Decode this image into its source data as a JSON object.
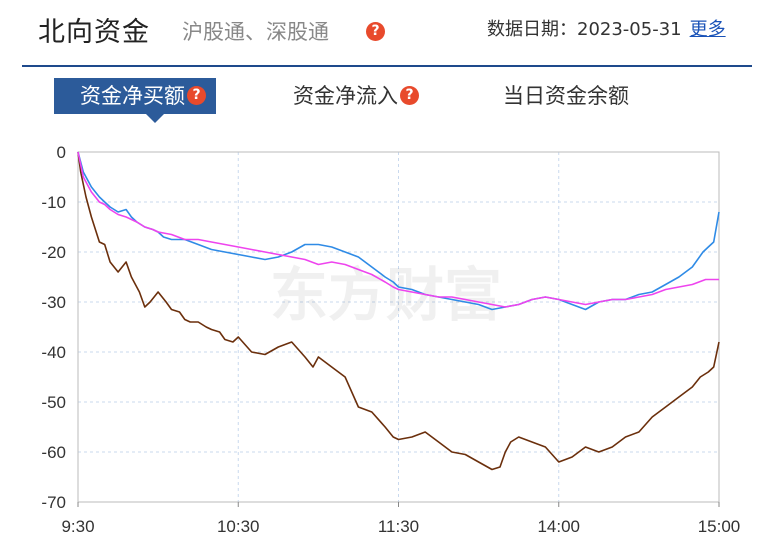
{
  "header": {
    "title": "北向资金",
    "subtitle": "沪股通、深股通",
    "help_icon": "question-mark-icon",
    "date_label": "数据日期：2023-05-31",
    "more_link": "更多"
  },
  "tabs": [
    {
      "label": "资金净买额",
      "active": true,
      "help": true
    },
    {
      "label": "资金净流入",
      "active": false,
      "help": true
    },
    {
      "label": "当日资金余额",
      "active": false,
      "help": false
    }
  ],
  "watermark": "东方财富",
  "colors": {
    "brand": "#1e4a8c",
    "accent": "#e84a2c",
    "blue_series": "#2f8be6",
    "magenta_series": "#ee44ee",
    "brown_series": "#6b2f0c"
  },
  "chart_data": {
    "type": "line",
    "title": "",
    "xlabel": "",
    "ylabel": "",
    "x_ticks": [
      "9:30",
      "10:30",
      "11:30",
      "14:00",
      "15:00"
    ],
    "y_ticks": [
      0,
      -10,
      -20,
      -30,
      -40,
      -50,
      -60,
      -70
    ],
    "ylim": [
      -70,
      0
    ],
    "x_range_minutes": [
      0,
      240
    ],
    "grid": true,
    "series": [
      {
        "color": "#6b2f0c",
        "x": [
          0,
          1,
          3,
          5,
          8,
          10,
          12,
          15,
          18,
          20,
          23,
          25,
          27,
          30,
          33,
          35,
          38,
          40,
          42,
          45,
          48,
          50,
          53,
          55,
          58,
          60,
          65,
          70,
          75,
          80,
          85,
          88,
          90,
          95,
          100,
          105,
          110,
          115,
          118,
          120,
          125,
          130,
          135,
          140,
          145,
          150,
          155,
          158,
          160,
          162,
          165,
          170,
          175,
          180,
          185,
          190,
          195,
          200,
          205,
          210,
          215,
          220,
          225,
          230,
          233,
          236,
          238,
          240
        ],
        "y": [
          0,
          -4,
          -9,
          -13,
          -18,
          -18.5,
          -22,
          -24,
          -22,
          -25,
          -28,
          -31,
          -30,
          -28,
          -30,
          -31.5,
          -32,
          -33.5,
          -34,
          -34,
          -35,
          -35.5,
          -36,
          -37.5,
          -38,
          -37,
          -40,
          -40.5,
          -39,
          -38,
          -41,
          -43,
          -41,
          -43,
          -45,
          -51,
          -52,
          -55,
          -57,
          -57.5,
          -57,
          -56,
          -58,
          -60,
          -60.5,
          -62,
          -63.5,
          -63,
          -60,
          -58,
          -57,
          -58,
          -59,
          -62,
          -61,
          -59,
          -60,
          -59,
          -57,
          -56,
          -53,
          -51,
          -49,
          -47,
          -45,
          -44,
          -43,
          -38
        ]
      },
      {
        "color": "#2f8be6",
        "x": [
          0,
          2,
          5,
          8,
          10,
          12,
          15,
          18,
          20,
          22,
          25,
          28,
          30,
          32,
          35,
          40,
          45,
          50,
          55,
          60,
          65,
          70,
          75,
          80,
          85,
          90,
          95,
          100,
          105,
          110,
          115,
          118,
          120,
          125,
          130,
          135,
          140,
          145,
          150,
          155,
          160,
          165,
          170,
          175,
          180,
          185,
          190,
          195,
          200,
          205,
          210,
          215,
          220,
          225,
          230,
          234,
          236,
          238,
          240
        ],
        "y": [
          0,
          -4,
          -7,
          -9,
          -10,
          -11,
          -12,
          -11.5,
          -13,
          -14,
          -15,
          -15.5,
          -16,
          -17,
          -17.5,
          -17.5,
          -18.5,
          -19.5,
          -20,
          -20.5,
          -21,
          -21.5,
          -21,
          -20,
          -18.5,
          -18.5,
          -19,
          -20,
          -21,
          -23,
          -25,
          -26,
          -27,
          -27.5,
          -28.5,
          -29,
          -29.5,
          -30,
          -30.5,
          -31.5,
          -31,
          -30.5,
          -29.5,
          -29,
          -29.5,
          -30.5,
          -31.5,
          -30,
          -29.5,
          -29.5,
          -28.5,
          -28,
          -26.5,
          -25,
          -23,
          -20,
          -19,
          -18,
          -12
        ]
      },
      {
        "color": "#ee44ee",
        "x": [
          0,
          2,
          5,
          8,
          10,
          12,
          15,
          18,
          20,
          22,
          25,
          28,
          30,
          35,
          40,
          45,
          50,
          55,
          60,
          65,
          70,
          75,
          80,
          85,
          90,
          95,
          100,
          105,
          110,
          115,
          118,
          120,
          125,
          130,
          135,
          140,
          145,
          150,
          155,
          160,
          165,
          170,
          175,
          180,
          185,
          190,
          195,
          200,
          205,
          210,
          215,
          220,
          225,
          230,
          235,
          240
        ],
        "y": [
          0,
          -5,
          -8,
          -10,
          -10.5,
          -11.5,
          -12.5,
          -13,
          -13.5,
          -14,
          -15,
          -15.5,
          -16,
          -16.5,
          -17.5,
          -17.5,
          -18,
          -18.5,
          -19,
          -19.5,
          -20,
          -20.5,
          -21,
          -21.5,
          -22.5,
          -22,
          -22.5,
          -23.5,
          -24.5,
          -26,
          -27,
          -27.5,
          -28,
          -28.5,
          -29,
          -29,
          -29.5,
          -30,
          -30.5,
          -31,
          -30.5,
          -29.5,
          -29,
          -29.5,
          -30,
          -30.5,
          -30,
          -29.5,
          -29.5,
          -29,
          -28.5,
          -27.5,
          -27,
          -26.5,
          -25.5,
          -25.5
        ]
      }
    ]
  }
}
